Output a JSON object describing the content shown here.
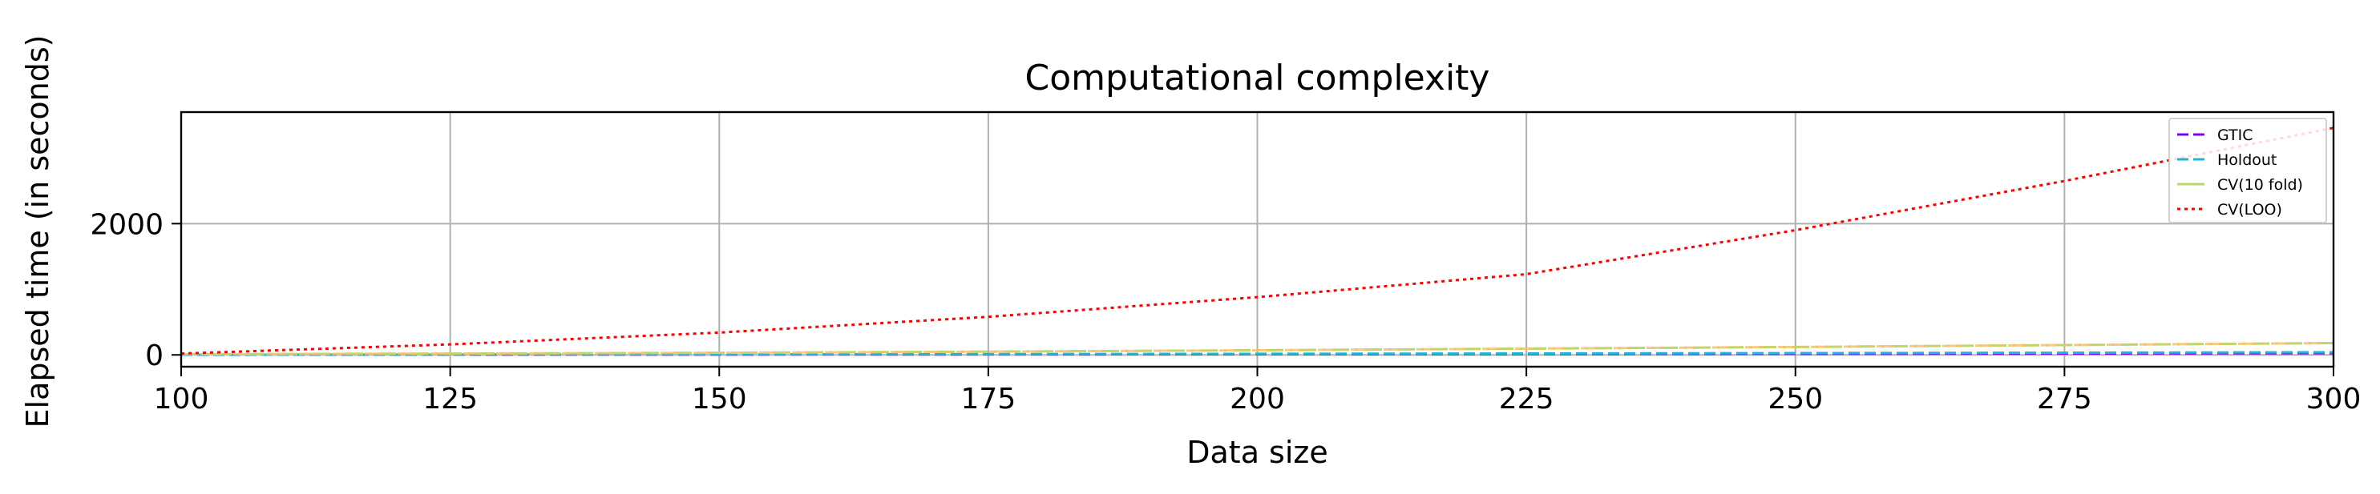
{
  "chart_data": {
    "type": "line",
    "title": "Computational complexity",
    "xlabel": "Data size",
    "ylabel": "Elapsed time (in seconds)",
    "xlim": [
      100,
      300
    ],
    "ylim": [
      -180,
      3700
    ],
    "x_ticks": [
      "100",
      "125",
      "150",
      "175",
      "200",
      "225",
      "250",
      "275",
      "300"
    ],
    "y_ticks": [
      "0",
      "2000"
    ],
    "grid": true,
    "legend_position": "top-right",
    "x": [
      100,
      125,
      150,
      175,
      200,
      225,
      250,
      275,
      300
    ],
    "series": [
      {
        "name": "GTIC",
        "color": "#7f00ff",
        "dash": "dashed",
        "values": [
          2,
          3,
          5,
          7,
          10,
          13,
          17,
          21,
          26
        ]
      },
      {
        "name": "Holdout",
        "color": "#1fb4d8",
        "dash": "dashed",
        "values": [
          3,
          5,
          8,
          12,
          16,
          21,
          27,
          33,
          40
        ]
      },
      {
        "name": "CV(10 fold)",
        "color": "#b8d86a",
        "dash": "dashdot",
        "secondary_color": "#f2c36b",
        "values": [
          10,
          20,
          32,
          50,
          70,
          95,
          120,
          150,
          180
        ]
      },
      {
        "name": "CV(LOO)",
        "color": "#ff0000",
        "dash": "dotted",
        "values": [
          20,
          160,
          340,
          580,
          880,
          1230,
          1900,
          2650,
          3460
        ]
      }
    ]
  }
}
